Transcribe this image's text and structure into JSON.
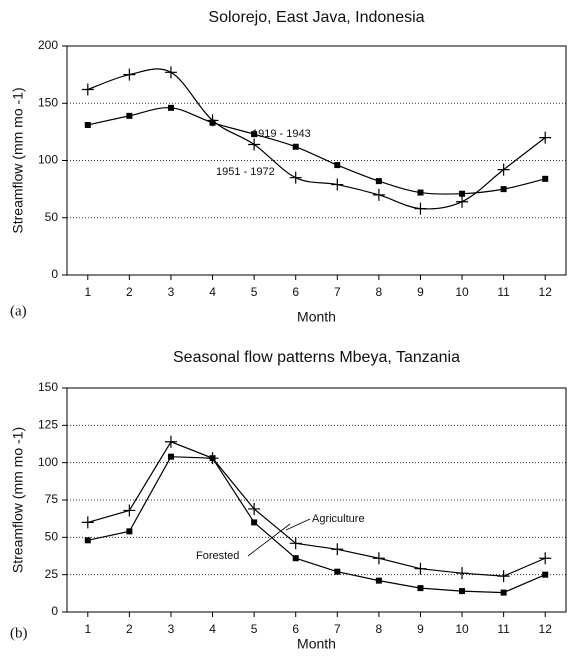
{
  "chart_data": [
    {
      "type": "line",
      "panel_label": "(a)",
      "title": "Solorejo, East Java, Indonesia",
      "x_label": "Month",
      "y_label": "Streamflow (mm mo -1)",
      "categories": [
        "1",
        "2",
        "3",
        "4",
        "5",
        "6",
        "7",
        "8",
        "9",
        "10",
        "11",
        "12"
      ],
      "ylim": [
        0,
        200
      ],
      "yticks": [
        0,
        50,
        100,
        150,
        200
      ],
      "grid": true,
      "smooth": true,
      "series": [
        {
          "name": "1919 - 1943",
          "color": "#000000",
          "marker": "square",
          "values": [
            131,
            139,
            146,
            133,
            123,
            112,
            96,
            82,
            72,
            71,
            75,
            84
          ]
        },
        {
          "name": "1951 - 1972",
          "color": "#000000",
          "marker": "plus",
          "values": [
            162,
            175,
            177,
            135,
            114,
            85,
            79,
            70,
            58,
            64,
            92,
            120
          ]
        }
      ]
    },
    {
      "type": "line",
      "panel_label": "(b)",
      "title": "Seasonal flow patterns Mbeya, Tanzania",
      "x_label": "Month",
      "y_label": "Streamflow (mm mo -1)",
      "categories": [
        "1",
        "2",
        "3",
        "4",
        "5",
        "6",
        "7",
        "8",
        "9",
        "10",
        "11",
        "12"
      ],
      "ylim": [
        0,
        150
      ],
      "yticks": [
        0,
        25,
        50,
        75,
        100,
        125,
        150
      ],
      "grid": true,
      "smooth": false,
      "series": [
        {
          "name": "Forested",
          "color": "#000000",
          "marker": "square",
          "values": [
            48,
            54,
            104,
            103,
            60,
            36,
            27,
            21,
            16,
            14,
            13,
            25
          ]
        },
        {
          "name": "Agriculture",
          "color": "#000000",
          "marker": "plus",
          "values": [
            60,
            68,
            114,
            103,
            69,
            46,
            42,
            36,
            29,
            26,
            24,
            36
          ]
        }
      ]
    }
  ]
}
